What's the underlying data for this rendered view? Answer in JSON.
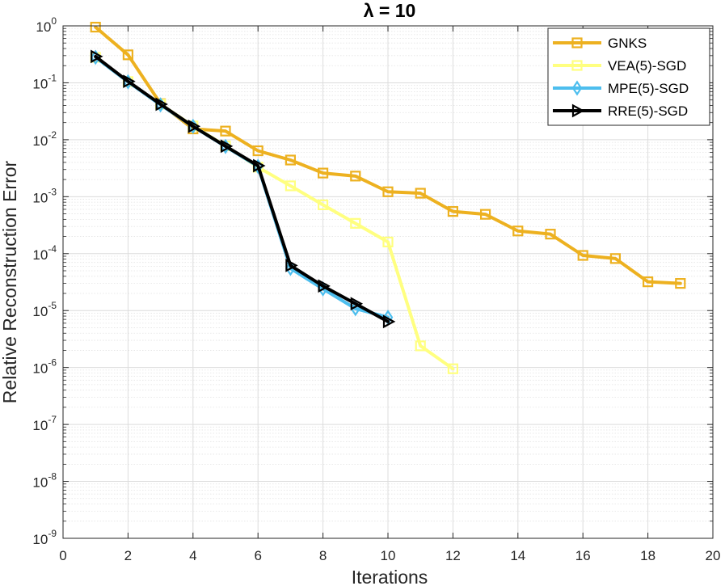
{
  "chart_data": {
    "type": "line",
    "title": "λ = 10",
    "xlabel": "Iterations",
    "ylabel": "Relative Reconstruction Error",
    "xlim": [
      0,
      20
    ],
    "ylim": [
      1e-09,
      1
    ],
    "yscale": "log",
    "grid": true,
    "minor_grid": true,
    "legend_position": "top-right",
    "x_ticks": [
      "0",
      "2",
      "4",
      "6",
      "8",
      "10",
      "12",
      "14",
      "16",
      "18",
      "20"
    ],
    "y_ticks": [
      {
        "base": "10",
        "exp": "0"
      },
      {
        "base": "10",
        "exp": "-1"
      },
      {
        "base": "10",
        "exp": "-2"
      },
      {
        "base": "10",
        "exp": "-3"
      },
      {
        "base": "10",
        "exp": "-4"
      },
      {
        "base": "10",
        "exp": "-5"
      },
      {
        "base": "10",
        "exp": "-6"
      },
      {
        "base": "10",
        "exp": "-7"
      },
      {
        "base": "10",
        "exp": "-8"
      },
      {
        "base": "10",
        "exp": "-9"
      }
    ],
    "series": [
      {
        "name": "GNKS",
        "color": "#EDB120",
        "marker": "square",
        "x": [
          1,
          2,
          3,
          4,
          5,
          6,
          7,
          8,
          9,
          10,
          11,
          12,
          13,
          14,
          15,
          16,
          17,
          18,
          19
        ],
        "y": [
          0.95,
          0.31,
          0.043,
          0.0155,
          0.0142,
          0.0064,
          0.0044,
          0.0026,
          0.0023,
          0.00122,
          0.00115,
          0.00055,
          0.00049,
          0.00025,
          0.00022,
          9.3e-05,
          8.2e-05,
          3.2e-05,
          3e-05
        ]
      },
      {
        "name": "VEA(5)-SGD",
        "color": "#FFFF80",
        "marker": "square",
        "x": [
          1,
          2,
          3,
          4,
          5,
          6,
          7,
          8,
          9,
          10,
          11,
          12
        ],
        "y": [
          0.28,
          0.105,
          0.042,
          0.0175,
          0.0078,
          0.0033,
          0.00155,
          0.00072,
          0.00034,
          0.00016,
          2.4e-06,
          9.5e-07
        ]
      },
      {
        "name": "MPE(5)-SGD",
        "color": "#4DBEEE",
        "marker": "diamond",
        "x": [
          1,
          2,
          3,
          4,
          5,
          6,
          7,
          8,
          9,
          10
        ],
        "y": [
          0.28,
          0.104,
          0.041,
          0.0172,
          0.0076,
          0.0034,
          5.5e-05,
          2.4e-05,
          1.08e-05,
          7.6e-06
        ]
      },
      {
        "name": "RRE(5)-SGD",
        "color": "#000000",
        "marker": "triangle-right",
        "x": [
          1,
          2,
          3,
          4,
          5,
          6,
          7,
          8,
          9,
          10
        ],
        "y": [
          0.29,
          0.106,
          0.042,
          0.0172,
          0.0077,
          0.0035,
          6.2e-05,
          2.7e-05,
          1.32e-05,
          6.4e-06
        ]
      }
    ]
  }
}
